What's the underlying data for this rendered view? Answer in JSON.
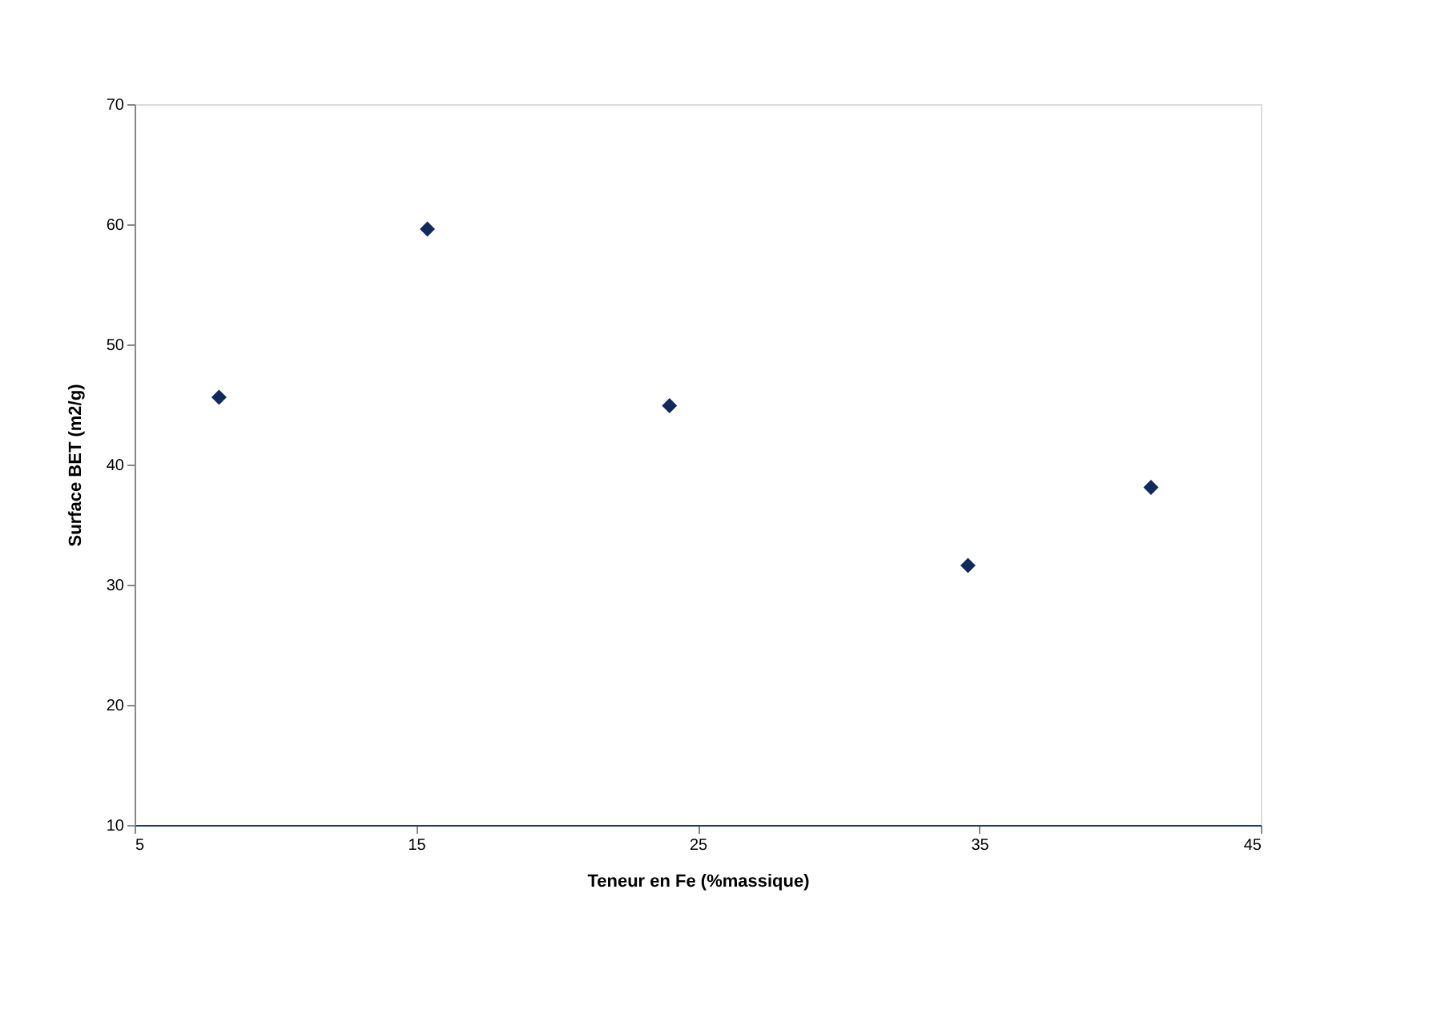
{
  "chart_data": {
    "type": "scatter",
    "xlabel": "Teneur en Fe (%massique)",
    "ylabel": "Surface BET (m2/g)",
    "x": [
      8.0,
      15.4,
      24.0,
      34.6,
      41.1
    ],
    "series": [
      {
        "color": "#102a5c",
        "values": [
          45.6,
          59.6,
          44.9,
          31.6,
          38.1
        ]
      }
    ],
    "xlim": [
      5,
      45
    ],
    "xticks": [
      5,
      15,
      25,
      35,
      45
    ],
    "ylim": [
      10,
      70
    ],
    "yticks": [
      10,
      20,
      30,
      40,
      50,
      60,
      70
    ],
    "marker": "diamond",
    "grid": false,
    "legend": false
  }
}
